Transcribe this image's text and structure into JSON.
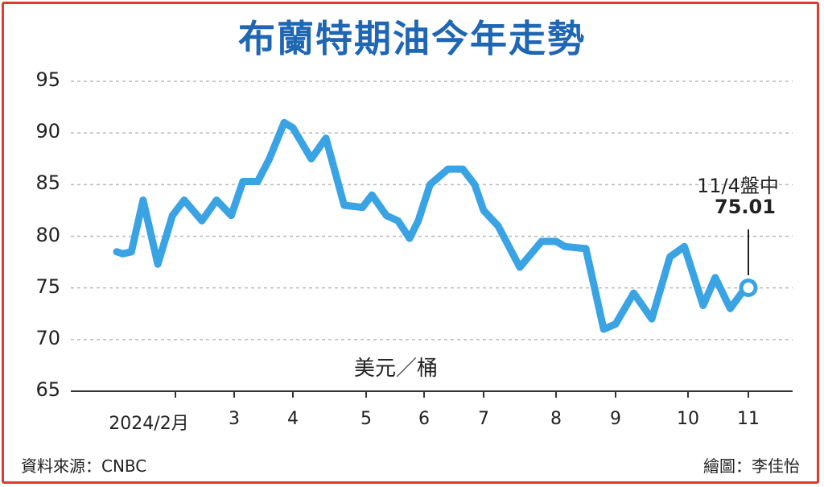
{
  "title": "布蘭特期油今年走勢",
  "unit_label": "美元／桶",
  "annotation": {
    "date": "11/4盤中",
    "value": "75.01"
  },
  "source": "資料來源：CNBC",
  "credit": "繪圖：李佳怡",
  "colors": {
    "line": "#3aa3e3",
    "title": "#1f66b3",
    "frame": "#e03a2f",
    "grid": "#bbbbbb"
  },
  "chart_data": {
    "type": "line",
    "title": "布蘭特期油今年走勢",
    "ylabel": "美元／桶",
    "ylim": [
      65,
      95
    ],
    "yticks": [
      "95",
      "90",
      "85",
      "80",
      "75",
      "70",
      "65"
    ],
    "xticks": [
      "2024/2月",
      "3",
      "4",
      "5",
      "6",
      "7",
      "8",
      "9",
      "10",
      "11"
    ],
    "grid": true,
    "x": [
      1.0,
      1.1,
      1.25,
      1.45,
      1.7,
      1.95,
      2.15,
      2.45,
      2.7,
      2.95,
      3.15,
      3.4,
      3.6,
      3.85,
      4.0,
      4.25,
      4.45,
      4.7,
      4.95,
      5.1,
      5.35,
      5.55,
      5.75,
      5.9,
      6.1,
      6.4,
      6.65,
      6.85,
      7.0,
      7.2,
      7.5,
      7.8,
      8.0,
      8.15,
      8.5,
      8.8,
      9.0,
      9.25,
      9.5,
      9.75,
      9.95,
      10.25,
      10.45,
      10.7,
      10.95,
      11.0
    ],
    "values": [
      78.5,
      78.3,
      78.5,
      83.5,
      77.3,
      82.0,
      83.5,
      81.5,
      83.5,
      82.0,
      85.3,
      85.3,
      87.5,
      91.0,
      90.5,
      87.5,
      89.5,
      83.0,
      82.8,
      84.0,
      82.0,
      81.5,
      79.8,
      81.5,
      85.0,
      86.5,
      86.5,
      85.0,
      82.5,
      81.0,
      77.0,
      79.5,
      79.5,
      79.0,
      78.8,
      71.0,
      71.5,
      74.5,
      72.0,
      78.0,
      79.0,
      73.3,
      76.0,
      73.0,
      75.0,
      75.01
    ]
  }
}
